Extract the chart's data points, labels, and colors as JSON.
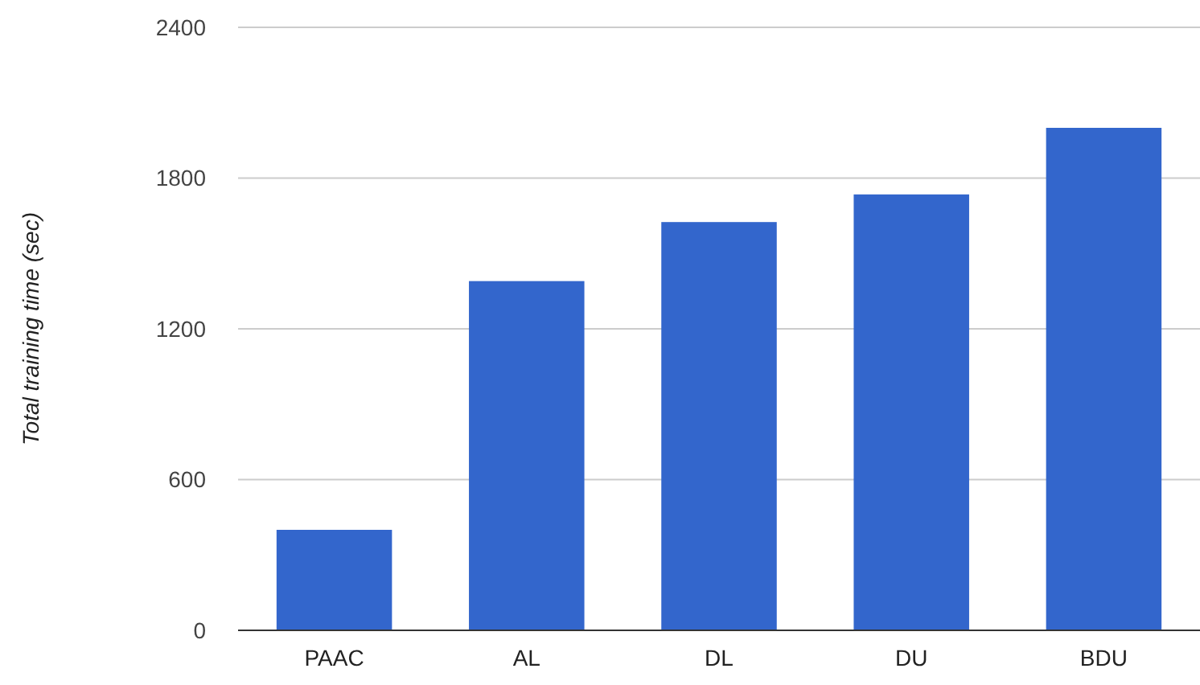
{
  "chart_data": {
    "type": "bar",
    "ylabel": "Total training time (sec)",
    "categories": [
      "PAAC",
      "AL",
      "DL",
      "DU",
      "BDU"
    ],
    "values": [
      400,
      1390,
      1625,
      1735,
      2000
    ],
    "color": "#3366cc",
    "ylim": [
      0,
      2400
    ],
    "yticks": [
      0,
      600,
      1200,
      1800,
      2400
    ],
    "grid": "y"
  }
}
